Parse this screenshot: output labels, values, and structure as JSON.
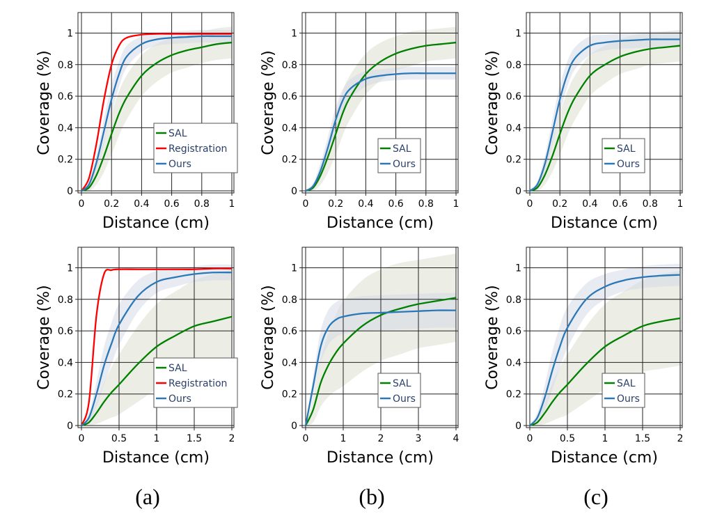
{
  "colors": {
    "SAL": "#008000",
    "Registration": "#ff0000",
    "Ours": "#2a78b8",
    "band_SAL": "#dcdfd0",
    "band_Ours": "#d6dbe8"
  },
  "panel_labels": [
    "(a)",
    "(b)",
    "(c)"
  ],
  "chart_data": [
    {
      "type": "line",
      "panel": "a-top",
      "xlabel": "Distance (cm)",
      "ylabel": "Coverage (%)",
      "xlim": [
        0,
        1
      ],
      "ylim": [
        0,
        1.13
      ],
      "grid": true,
      "legend": "bottom-right",
      "xticks": [
        0,
        0.2,
        0.4,
        0.6,
        0.8,
        1
      ],
      "xticklabels": [
        "0",
        "0.2",
        "0.4",
        "0.6",
        "0.8",
        "1"
      ],
      "yticks": [
        0,
        0.2,
        0.4,
        0.6,
        0.8,
        1
      ],
      "yticklabels": [
        "0",
        "0.2",
        "0.4",
        "0.6",
        "0.8",
        "1"
      ],
      "x": [
        0,
        0.05,
        0.1,
        0.15,
        0.2,
        0.25,
        0.3,
        0.4,
        0.5,
        0.6,
        0.7,
        0.8,
        0.9,
        1.0
      ],
      "series": [
        {
          "name": "SAL",
          "values": [
            0,
            0.02,
            0.1,
            0.22,
            0.36,
            0.49,
            0.59,
            0.73,
            0.81,
            0.86,
            0.89,
            0.91,
            0.93,
            0.94
          ],
          "spread": [
            0,
            0.02,
            0.06,
            0.1,
            0.13,
            0.14,
            0.14,
            0.13,
            0.12,
            0.11,
            0.11,
            0.1,
            0.1,
            0.1
          ]
        },
        {
          "name": "Registration",
          "values": [
            0,
            0.08,
            0.3,
            0.58,
            0.8,
            0.92,
            0.97,
            0.99,
            0.995,
            0.995,
            0.995,
            0.995,
            0.995,
            0.995
          ]
        },
        {
          "name": "Ours",
          "values": [
            0,
            0.04,
            0.18,
            0.38,
            0.58,
            0.74,
            0.85,
            0.93,
            0.96,
            0.97,
            0.975,
            0.98,
            0.98,
            0.98
          ],
          "spread": [
            0,
            0.02,
            0.05,
            0.08,
            0.09,
            0.08,
            0.07,
            0.05,
            0.04,
            0.04,
            0.04,
            0.04,
            0.04,
            0.04
          ]
        }
      ]
    },
    {
      "type": "line",
      "panel": "b-top",
      "xlabel": "Distance (cm)",
      "ylabel": "Coverage (%)",
      "xlim": [
        0,
        1
      ],
      "ylim": [
        0,
        1.13
      ],
      "grid": true,
      "legend": "bottom-right",
      "xticks": [
        0,
        0.2,
        0.4,
        0.6,
        0.8,
        1
      ],
      "xticklabels": [
        "0",
        "0.2",
        "0.4",
        "0.6",
        "0.8",
        "1"
      ],
      "yticks": [
        0,
        0.2,
        0.4,
        0.6,
        0.8,
        1
      ],
      "yticklabels": [
        "0",
        "0.2",
        "0.4",
        "0.6",
        "0.8",
        "1"
      ],
      "x": [
        0,
        0.05,
        0.1,
        0.15,
        0.2,
        0.25,
        0.3,
        0.4,
        0.5,
        0.6,
        0.7,
        0.8,
        0.9,
        1.0
      ],
      "series": [
        {
          "name": "SAL",
          "values": [
            0,
            0.02,
            0.1,
            0.22,
            0.36,
            0.5,
            0.6,
            0.74,
            0.82,
            0.87,
            0.9,
            0.92,
            0.93,
            0.94
          ],
          "spread": [
            0,
            0.02,
            0.06,
            0.1,
            0.13,
            0.14,
            0.14,
            0.13,
            0.12,
            0.11,
            0.11,
            0.1,
            0.1,
            0.1
          ]
        },
        {
          "name": "Ours",
          "values": [
            0,
            0.03,
            0.13,
            0.28,
            0.45,
            0.58,
            0.65,
            0.71,
            0.73,
            0.74,
            0.745,
            0.745,
            0.745,
            0.745
          ],
          "spread": [
            0,
            0.02,
            0.05,
            0.07,
            0.08,
            0.07,
            0.06,
            0.05,
            0.04,
            0.04,
            0.04,
            0.04,
            0.04,
            0.04
          ]
        }
      ]
    },
    {
      "type": "line",
      "panel": "c-top",
      "xlabel": "Distance (cm)",
      "ylabel": "Coverage (%)",
      "xlim": [
        0,
        1
      ],
      "ylim": [
        0,
        1.13
      ],
      "grid": true,
      "legend": "bottom-right",
      "xticks": [
        0,
        0.2,
        0.4,
        0.6,
        0.8,
        1
      ],
      "xticklabels": [
        "0",
        "0.2",
        "0.4",
        "0.6",
        "0.8",
        "1"
      ],
      "yticks": [
        0,
        0.2,
        0.4,
        0.6,
        0.8,
        1
      ],
      "yticklabels": [
        "0",
        "0.2",
        "0.4",
        "0.6",
        "0.8",
        "1"
      ],
      "x": [
        0,
        0.05,
        0.1,
        0.15,
        0.2,
        0.25,
        0.3,
        0.4,
        0.5,
        0.6,
        0.7,
        0.8,
        0.9,
        1.0
      ],
      "series": [
        {
          "name": "SAL",
          "values": [
            0,
            0.02,
            0.1,
            0.22,
            0.36,
            0.49,
            0.59,
            0.73,
            0.8,
            0.85,
            0.88,
            0.9,
            0.91,
            0.92
          ],
          "spread": [
            0,
            0.02,
            0.06,
            0.1,
            0.13,
            0.14,
            0.14,
            0.13,
            0.12,
            0.11,
            0.11,
            0.1,
            0.1,
            0.1
          ]
        },
        {
          "name": "Ours",
          "values": [
            0,
            0.04,
            0.17,
            0.37,
            0.58,
            0.74,
            0.84,
            0.92,
            0.94,
            0.95,
            0.955,
            0.96,
            0.96,
            0.96
          ],
          "spread": [
            0,
            0.02,
            0.05,
            0.08,
            0.09,
            0.08,
            0.07,
            0.06,
            0.05,
            0.05,
            0.05,
            0.05,
            0.05,
            0.05
          ]
        }
      ]
    },
    {
      "type": "line",
      "panel": "a-bottom",
      "xlabel": "Distance (cm)",
      "ylabel": "Coverage (%)",
      "xlim": [
        0,
        2
      ],
      "ylim": [
        0,
        1.13
      ],
      "grid": true,
      "legend": "bottom-right",
      "xticks": [
        0,
        0.5,
        1,
        1.5,
        2
      ],
      "xticklabels": [
        "0",
        "0.5",
        "1",
        "1.5",
        "2"
      ],
      "yticks": [
        0,
        0.2,
        0.4,
        0.6,
        0.8,
        1
      ],
      "yticklabels": [
        "0",
        "0.2",
        "0.4",
        "0.6",
        "0.8",
        "1"
      ],
      "x": [
        0,
        0.1,
        0.2,
        0.3,
        0.4,
        0.5,
        0.75,
        1,
        1.25,
        1.5,
        1.75,
        2
      ],
      "series": [
        {
          "name": "SAL",
          "values": [
            0,
            0.02,
            0.08,
            0.15,
            0.21,
            0.26,
            0.39,
            0.5,
            0.57,
            0.63,
            0.66,
            0.69
          ],
          "spread": [
            0,
            0.02,
            0.07,
            0.12,
            0.16,
            0.19,
            0.24,
            0.27,
            0.28,
            0.29,
            0.3,
            0.3
          ]
        },
        {
          "name": "Registration",
          "values": [
            0,
            0.15,
            0.7,
            0.96,
            0.985,
            0.99,
            0.99,
            0.99,
            0.99,
            0.99,
            0.995,
            0.995
          ]
        },
        {
          "name": "Ours",
          "values": [
            0,
            0.05,
            0.2,
            0.38,
            0.52,
            0.64,
            0.82,
            0.91,
            0.94,
            0.96,
            0.97,
            0.97
          ],
          "spread": [
            0,
            0.03,
            0.08,
            0.12,
            0.13,
            0.13,
            0.1,
            0.07,
            0.06,
            0.05,
            0.05,
            0.05
          ]
        }
      ]
    },
    {
      "type": "line",
      "panel": "b-bottom",
      "xlabel": "Distance (cm)",
      "ylabel": "Coverage (%)",
      "xlim": [
        0,
        4
      ],
      "ylim": [
        0,
        1.13
      ],
      "grid": true,
      "legend": "bottom-right",
      "xticks": [
        0,
        1,
        2,
        3,
        4
      ],
      "xticklabels": [
        "0",
        "1",
        "2",
        "3",
        "4"
      ],
      "yticks": [
        0,
        0.2,
        0.4,
        0.6,
        0.8,
        1
      ],
      "yticklabels": [
        "0",
        "0.2",
        "0.4",
        "0.6",
        "0.8",
        "1"
      ],
      "x": [
        0,
        0.2,
        0.4,
        0.6,
        0.8,
        1,
        1.5,
        2,
        2.5,
        3,
        3.5,
        4
      ],
      "series": [
        {
          "name": "SAL",
          "values": [
            0,
            0.1,
            0.27,
            0.38,
            0.46,
            0.52,
            0.63,
            0.7,
            0.74,
            0.77,
            0.79,
            0.81
          ],
          "spread": [
            0,
            0.08,
            0.15,
            0.2,
            0.24,
            0.27,
            0.29,
            0.29,
            0.29,
            0.28,
            0.28,
            0.28
          ]
        },
        {
          "name": "Ours",
          "values": [
            0,
            0.25,
            0.5,
            0.62,
            0.67,
            0.69,
            0.71,
            0.715,
            0.72,
            0.725,
            0.73,
            0.73
          ],
          "spread": [
            0,
            0.06,
            0.1,
            0.11,
            0.11,
            0.11,
            0.11,
            0.11,
            0.11,
            0.11,
            0.11,
            0.11
          ]
        }
      ]
    },
    {
      "type": "line",
      "panel": "c-bottom",
      "xlabel": "Distance (cm)",
      "ylabel": "Coverage (%)",
      "xlim": [
        0,
        2
      ],
      "ylim": [
        0,
        1.13
      ],
      "grid": true,
      "legend": "bottom-right",
      "xticks": [
        0,
        0.5,
        1,
        1.5,
        2
      ],
      "xticklabels": [
        "0",
        "0.5",
        "1",
        "1.5",
        "2"
      ],
      "yticks": [
        0,
        0.2,
        0.4,
        0.6,
        0.8,
        1
      ],
      "yticklabels": [
        "0",
        "0.2",
        "0.4",
        "0.6",
        "0.8",
        "1"
      ],
      "x": [
        0,
        0.1,
        0.2,
        0.3,
        0.4,
        0.5,
        0.75,
        1,
        1.25,
        1.5,
        1.75,
        2
      ],
      "series": [
        {
          "name": "SAL",
          "values": [
            0,
            0.02,
            0.08,
            0.15,
            0.21,
            0.26,
            0.39,
            0.5,
            0.57,
            0.63,
            0.66,
            0.68
          ],
          "spread": [
            0,
            0.02,
            0.07,
            0.12,
            0.16,
            0.19,
            0.24,
            0.27,
            0.28,
            0.29,
            0.3,
            0.3
          ]
        },
        {
          "name": "Ours",
          "values": [
            0,
            0.05,
            0.18,
            0.35,
            0.5,
            0.62,
            0.8,
            0.88,
            0.92,
            0.94,
            0.95,
            0.955
          ],
          "spread": [
            0,
            0.03,
            0.08,
            0.12,
            0.13,
            0.13,
            0.1,
            0.08,
            0.07,
            0.07,
            0.07,
            0.07
          ]
        }
      ]
    }
  ]
}
